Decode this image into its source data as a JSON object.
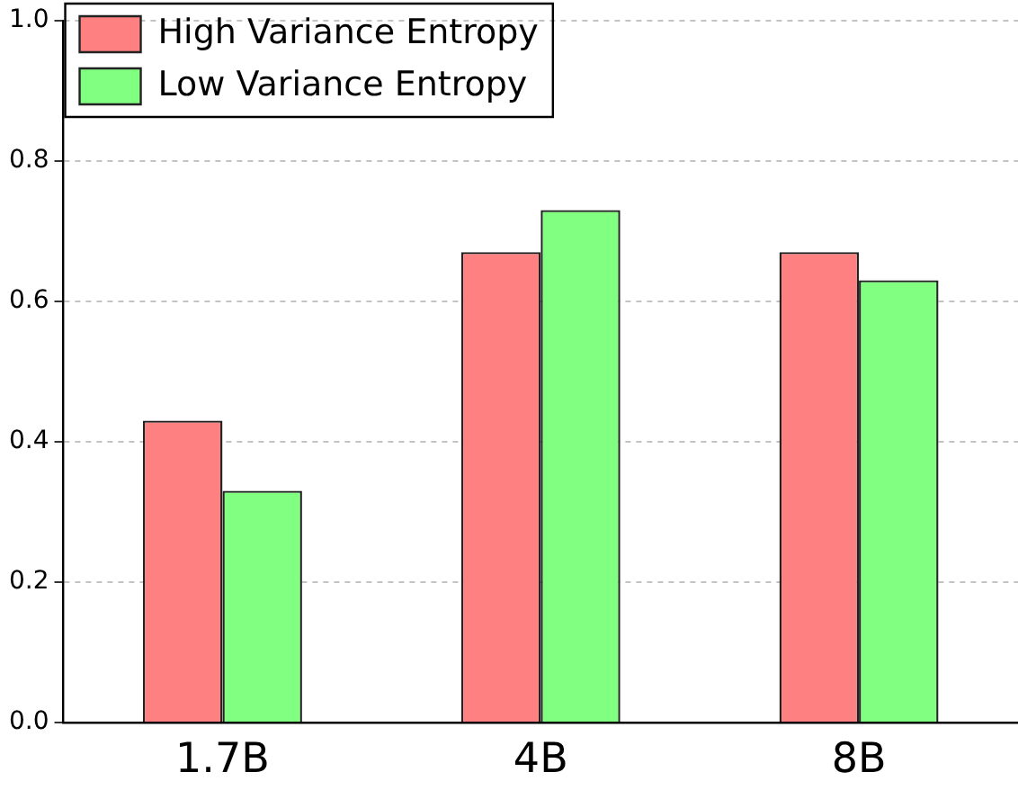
{
  "chart_data": {
    "type": "bar",
    "categories": [
      "1.7B",
      "4B",
      "8B"
    ],
    "series": [
      {
        "name": "High Variance Entropy",
        "color": "#ff8080",
        "values": [
          0.43,
          0.67,
          0.67
        ]
      },
      {
        "name": "Low Variance Entropy",
        "color": "#80ff80",
        "values": [
          0.33,
          0.73,
          0.63
        ]
      }
    ],
    "ylim": [
      0,
      1.0
    ],
    "yticks": [
      {
        "value": 0,
        "label": "0.0"
      },
      {
        "value": 0.2,
        "label": "0.2"
      },
      {
        "value": 0.4,
        "label": "0.4"
      },
      {
        "value": 0.6,
        "label": "0.6"
      },
      {
        "value": 0.8,
        "label": "0.8"
      },
      {
        "value": 1.0,
        "label": "1.0"
      }
    ],
    "grid": "y",
    "legend": "top left"
  }
}
